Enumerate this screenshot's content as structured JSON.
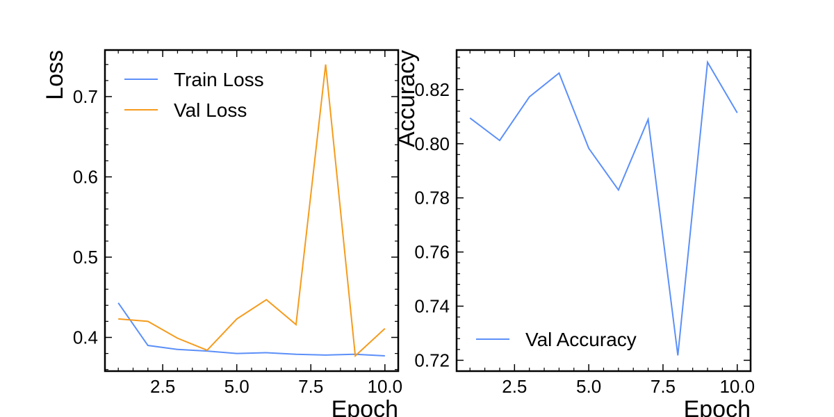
{
  "chart_data": [
    {
      "type": "line",
      "xlabel": "Epoch",
      "ylabel": "Loss",
      "xlim": [
        0.55,
        10.45
      ],
      "ylim": [
        0.358,
        0.758
      ],
      "xticks": [
        2.5,
        5.0,
        7.5,
        10.0
      ],
      "xtick_labels": [
        "2.5",
        "5.0",
        "7.5",
        "10.0"
      ],
      "yticks": [
        0.4,
        0.5,
        0.6,
        0.7
      ],
      "ytick_labels": [
        "0.4",
        "0.5",
        "0.6",
        "0.7"
      ],
      "grid": false,
      "legend_position": "upper-left",
      "x": [
        1,
        2,
        3,
        4,
        5,
        6,
        7,
        8,
        9,
        10
      ],
      "series": [
        {
          "name": "Train Loss",
          "color": "#5b8ff9",
          "values": [
            0.443,
            0.39,
            0.385,
            0.383,
            0.38,
            0.381,
            0.379,
            0.378,
            0.379,
            0.377
          ]
        },
        {
          "name": "Val Loss",
          "color": "#f59b1c",
          "values": [
            0.423,
            0.42,
            0.399,
            0.384,
            0.423,
            0.447,
            0.416,
            0.74,
            0.377,
            0.411
          ]
        }
      ]
    },
    {
      "type": "line",
      "xlabel": "Epoch",
      "ylabel": "Accuracy",
      "xlim": [
        0.55,
        10.45
      ],
      "ylim": [
        0.716,
        0.8346
      ],
      "xticks": [
        2.5,
        5.0,
        7.5,
        10.0
      ],
      "xtick_labels": [
        "2.5",
        "5.0",
        "7.5",
        "10.0"
      ],
      "yticks": [
        0.72,
        0.74,
        0.76,
        0.78,
        0.8,
        0.82
      ],
      "ytick_labels": [
        "0.72",
        "0.74",
        "0.76",
        "0.78",
        "0.80",
        "0.82"
      ],
      "grid": false,
      "legend_position": "lower-left",
      "x": [
        1,
        2,
        3,
        4,
        5,
        6,
        7,
        8,
        9,
        10
      ],
      "series": [
        {
          "name": "Val Accuracy",
          "color": "#5b8ff9",
          "values": [
            0.8095,
            0.8012,
            0.8173,
            0.8261,
            0.7983,
            0.7829,
            0.809,
            0.7218,
            0.8301,
            0.8114
          ]
        }
      ]
    }
  ]
}
